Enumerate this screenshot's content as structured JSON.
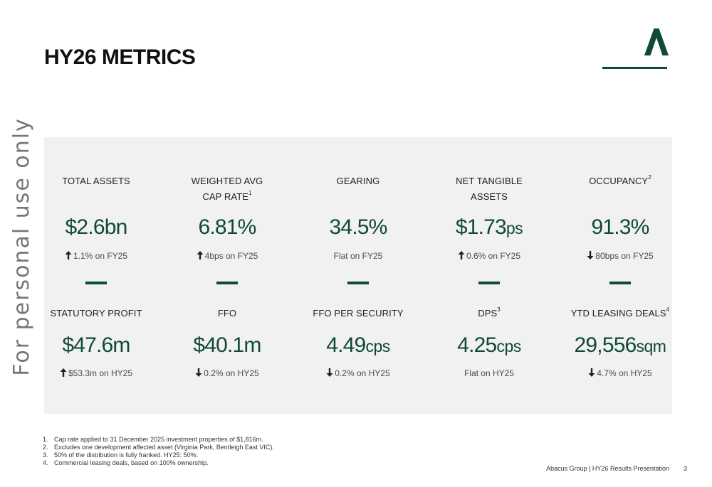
{
  "watermark": "For personal use only",
  "title": "HY26 METRICS",
  "metrics_row1": [
    {
      "label_line1": "TOTAL ASSETS",
      "label_line2": "",
      "sup": "",
      "value": "$2.6bn",
      "unit": "",
      "change": "1.1% on FY25",
      "direction": "up"
    },
    {
      "label_line1": "WEIGHTED AVG",
      "label_line2": "CAP RATE",
      "sup": "1",
      "value": "6.81%",
      "unit": "",
      "change": "4bps on FY25",
      "direction": "up"
    },
    {
      "label_line1": "GEARING",
      "label_line2": "",
      "sup": "",
      "value": "34.5%",
      "unit": "",
      "change": "Flat on FY25",
      "direction": "flat"
    },
    {
      "label_line1": "NET TANGIBLE",
      "label_line2": "ASSETS",
      "sup": "",
      "value": "$1.73",
      "unit": "ps",
      "change": "0.6% on FY25",
      "direction": "up"
    },
    {
      "label_line1": "OCCUPANCY",
      "label_line2": "",
      "sup": "2",
      "value": "91.3%",
      "unit": "",
      "change": "80bps on FY25",
      "direction": "down"
    }
  ],
  "metrics_row2": [
    {
      "label_line1": "STATUTORY PROFIT",
      "label_line2": "",
      "sup": "",
      "value": "$47.6m",
      "unit": "",
      "change": "$53.3m on HY25",
      "direction": "up"
    },
    {
      "label_line1": "FFO",
      "label_line2": "",
      "sup": "",
      "value": "$40.1m",
      "unit": "",
      "change": "0.2% on HY25",
      "direction": "down"
    },
    {
      "label_line1": "FFO PER SECURITY",
      "label_line2": "",
      "sup": "",
      "value": "4.49",
      "unit": "cps",
      "change": "0.2% on HY25",
      "direction": "down"
    },
    {
      "label_line1": "DPS",
      "label_line2": "",
      "sup": "3",
      "value": "4.25",
      "unit": "cps",
      "change": "Flat on HY25",
      "direction": "flat"
    },
    {
      "label_line1": "YTD LEASING DEALS",
      "label_line2": "",
      "sup": "4",
      "value": "29,556",
      "unit": "sqm",
      "change": "4.7% on HY25",
      "direction": "down"
    }
  ],
  "footnotes": [
    {
      "num": "1.",
      "text": "Cap rate applied to 31 December 2025 investment properties of $1,816m."
    },
    {
      "num": "2.",
      "text": "Excludes one development affected asset (Virginia Park, Bentleigh East VIC)."
    },
    {
      "num": "3.",
      "text": "50% of the distribution is fully franked. HY25: 50%."
    },
    {
      "num": "4.",
      "text": "Commercial leasing deals, based on 100% ownership."
    }
  ],
  "footer": {
    "text": "Abacus Group | HY26 Results Presentation",
    "page": "3"
  },
  "colors": {
    "accent": "#0f4a32",
    "panel": "#f1f1f1"
  },
  "icons": {
    "logo": "abacus-a-logo",
    "up": "arrow-up-icon",
    "down": "arrow-down-icon"
  }
}
